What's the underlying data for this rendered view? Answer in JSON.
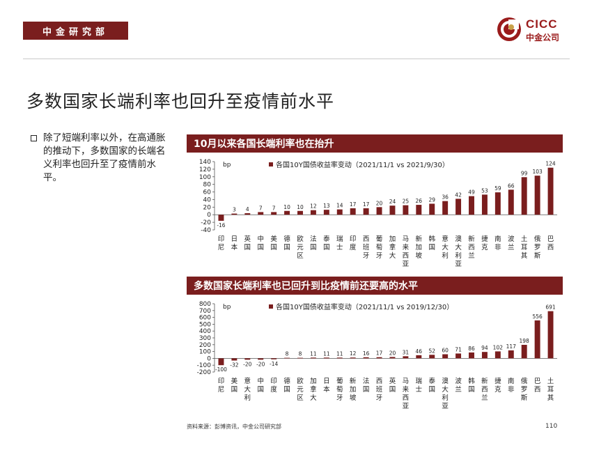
{
  "header": {
    "section": "中金研究部"
  },
  "logo": {
    "en": "CICC",
    "cn": "中金公司"
  },
  "page_title": "多数国家长端利率也回升至疫情前水平",
  "bullet": "除了短端利率以外，在高通胀的推动下，多数国家的长端名义利率也回升至了疫情前水平。",
  "colors": {
    "brand": "#7a1e1e",
    "bar": "#7a1e1e",
    "text": "#222222"
  },
  "chart_data": [
    {
      "type": "bar",
      "title": "10月以来各国长端利率也在抬升",
      "ylabel": "bp",
      "legend": "各国10Y国债收益率变动（2021/11/1 vs 2021/9/30）",
      "ylim": [
        -40,
        140
      ],
      "yticks": [
        -40,
        -20,
        0,
        20,
        40,
        60,
        80,
        100,
        120,
        140
      ],
      "categories": [
        "印尼",
        "日本",
        "英国",
        "中国",
        "美国",
        "德国",
        "欧元区",
        "法国",
        "泰国",
        "瑞士",
        "印度",
        "西班牙",
        "葡萄牙",
        "加拿大",
        "马来西亚",
        "新加坡",
        "韩国",
        "意大利",
        "澳大利亚",
        "新西兰",
        "捷克",
        "南非",
        "波兰",
        "土耳其",
        "俄罗斯",
        "巴西"
      ],
      "values": [
        -16,
        3,
        4,
        7,
        7,
        10,
        10,
        12,
        13,
        14,
        17,
        17,
        20,
        24,
        25,
        26,
        29,
        36,
        42,
        49,
        53,
        59,
        66,
        99,
        103,
        124
      ]
    },
    {
      "type": "bar",
      "title": "多数国家长端利率也已回升到比疫情前还要高的水平",
      "ylabel": "bp",
      "legend": "各国10Y国债收益率变动（2021/11/1 vs 2019/12/30）",
      "ylim": [
        -200,
        800
      ],
      "yticks": [
        -200,
        -100,
        0,
        100,
        200,
        300,
        400,
        500,
        600,
        700,
        800
      ],
      "categories": [
        "印尼",
        "美国",
        "意大利",
        "中国",
        "印度",
        "德国",
        "欧元区",
        "加拿大",
        "日本",
        "葡萄牙",
        "新加坡",
        "法国",
        "西班牙",
        "英国",
        "马来西亚",
        "瑞士",
        "泰国",
        "澳大利亚",
        "波兰",
        "韩国",
        "新西兰",
        "捷克",
        "南非",
        "俄罗斯",
        "巴西",
        "土耳其"
      ],
      "values": [
        -100,
        -32,
        -20,
        -20,
        -14,
        8,
        8,
        11,
        11,
        11,
        12,
        16,
        17,
        20,
        31,
        46,
        52,
        60,
        71,
        86,
        94,
        102,
        117,
        198,
        556,
        691
      ]
    }
  ],
  "footer": {
    "source": "资料来源：彭博资讯，中金公司研究部",
    "page": "110"
  }
}
